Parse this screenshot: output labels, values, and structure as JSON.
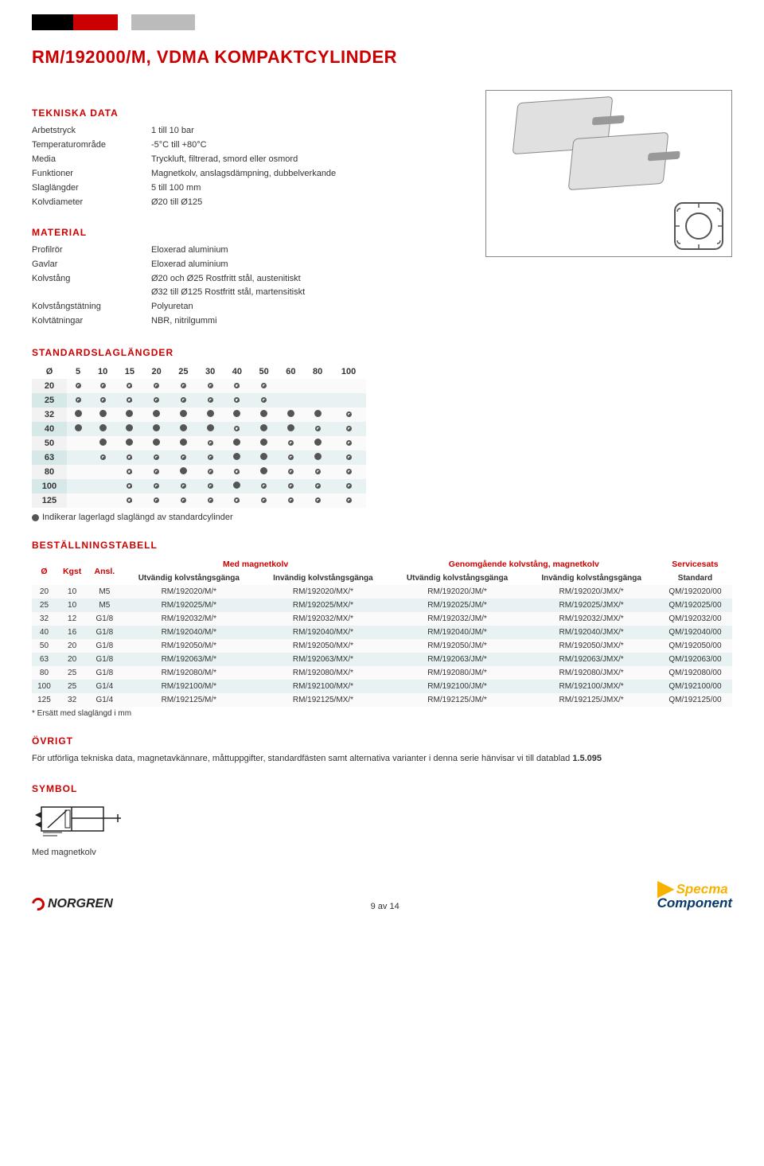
{
  "title": "RM/192000/M, VDMA KOMPAKTCYLINDER",
  "sections": {
    "tech": "TEKNISKA DATA",
    "material": "MATERIAL",
    "strokes": "STANDARDSLAGLÄNGDER",
    "order": "BESTÄLLNINGSTABELL",
    "other": "ÖVRIGT",
    "symbol": "SYMBOL"
  },
  "tech_specs": [
    {
      "label": "Arbetstryck",
      "value": "1 till 10 bar"
    },
    {
      "label": "Temperaturområde",
      "value": "-5°C till +80°C"
    },
    {
      "label": "Media",
      "value": "Tryckluft, filtrerad, smord eller osmord"
    },
    {
      "label": "Funktioner",
      "value": "Magnetkolv, anslagsdämpning, dubbelverkande"
    },
    {
      "label": "Slaglängder",
      "value": "5 till 100 mm"
    },
    {
      "label": "Kolvdiameter",
      "value": "Ø20 till Ø125"
    }
  ],
  "material_specs": [
    {
      "label": "Profilrör",
      "value": "Eloxerad aluminium"
    },
    {
      "label": "Gavlar",
      "value": "Eloxerad aluminium"
    },
    {
      "label": "Kolvstång",
      "value": "Ø20 och Ø25 Rostfritt stål, austenitiskt"
    },
    {
      "label": "",
      "value": "Ø32 till Ø125 Rostfritt stål, martensitiskt"
    },
    {
      "label": "Kolvstångstätning",
      "value": "Polyuretan"
    },
    {
      "label": "Kolvtätningar",
      "value": "NBR, nitrilgummi"
    }
  ],
  "stroke_table": {
    "header": [
      "Ø",
      "5",
      "10",
      "15",
      "20",
      "25",
      "30",
      "40",
      "50",
      "60",
      "80",
      "100"
    ],
    "rows": [
      {
        "d": "20",
        "cells": [
          "r",
          "r",
          "r",
          "r",
          "r",
          "r",
          "r",
          "r",
          "",
          "",
          ""
        ]
      },
      {
        "d": "25",
        "cells": [
          "r",
          "r",
          "r",
          "r",
          "r",
          "r",
          "r",
          "r",
          "",
          "",
          ""
        ]
      },
      {
        "d": "32",
        "cells": [
          "f",
          "f",
          "f",
          "f",
          "f",
          "f",
          "f",
          "f",
          "f",
          "f",
          "r"
        ]
      },
      {
        "d": "40",
        "cells": [
          "f",
          "f",
          "f",
          "f",
          "f",
          "f",
          "r",
          "f",
          "f",
          "r",
          "r"
        ]
      },
      {
        "d": "50",
        "cells": [
          "",
          "f",
          "f",
          "f",
          "f",
          "r",
          "f",
          "f",
          "r",
          "f",
          "r"
        ]
      },
      {
        "d": "63",
        "cells": [
          "",
          "r",
          "r",
          "r",
          "r",
          "r",
          "f",
          "f",
          "r",
          "f",
          "r"
        ]
      },
      {
        "d": "80",
        "cells": [
          "",
          "",
          "r",
          "r",
          "f",
          "r",
          "r",
          "f",
          "r",
          "r",
          "r"
        ]
      },
      {
        "d": "100",
        "cells": [
          "",
          "",
          "r",
          "r",
          "r",
          "r",
          "f",
          "r",
          "r",
          "r",
          "r"
        ]
      },
      {
        "d": "125",
        "cells": [
          "",
          "",
          "r",
          "r",
          "r",
          "r",
          "r",
          "r",
          "r",
          "r",
          "r"
        ]
      }
    ],
    "legend_text": "Indikerar lagerlagd slaglängd av standardcylinder"
  },
  "order_table": {
    "group_headers": {
      "blank": "",
      "kgst": "",
      "ansl": "",
      "magnet": "Med magnetkolv",
      "through": "Genomgående kolvstång, magnetkolv",
      "service": "Servicesats"
    },
    "sub_headers": {
      "dia": "Ø",
      "kgst": "Kgst",
      "ansl": "Ansl.",
      "ext": "Utvändig kolvstångsgänga",
      "int": "Invändig kolvstångsgänga",
      "std": "Standard"
    },
    "rows": [
      {
        "d": "20",
        "k": "10",
        "a": "M5",
        "m1": "RM/192020/M/*",
        "m2": "RM/192020/MX/*",
        "t1": "RM/192020/JM/*",
        "t2": "RM/192020/JMX/*",
        "s": "QM/192020/00"
      },
      {
        "d": "25",
        "k": "10",
        "a": "M5",
        "m1": "RM/192025/M/*",
        "m2": "RM/192025/MX/*",
        "t1": "RM/192025/JM/*",
        "t2": "RM/192025/JMX/*",
        "s": "QM/192025/00"
      },
      {
        "d": "32",
        "k": "12",
        "a": "G1/8",
        "m1": "RM/192032/M/*",
        "m2": "RM/192032/MX/*",
        "t1": "RM/192032/JM/*",
        "t2": "RM/192032/JMX/*",
        "s": "QM/192032/00"
      },
      {
        "d": "40",
        "k": "16",
        "a": "G1/8",
        "m1": "RM/192040/M/*",
        "m2": "RM/192040/MX/*",
        "t1": "RM/192040/JM/*",
        "t2": "RM/192040/JMX/*",
        "s": "QM/192040/00"
      },
      {
        "d": "50",
        "k": "20",
        "a": "G1/8",
        "m1": "RM/192050/M/*",
        "m2": "RM/192050/MX/*",
        "t1": "RM/192050/JM/*",
        "t2": "RM/192050/JMX/*",
        "s": "QM/192050/00"
      },
      {
        "d": "63",
        "k": "20",
        "a": "G1/8",
        "m1": "RM/192063/M/*",
        "m2": "RM/192063/MX/*",
        "t1": "RM/192063/JM/*",
        "t2": "RM/192063/JMX/*",
        "s": "QM/192063/00"
      },
      {
        "d": "80",
        "k": "25",
        "a": "G1/8",
        "m1": "RM/192080/M/*",
        "m2": "RM/192080/MX/*",
        "t1": "RM/192080/JM/*",
        "t2": "RM/192080/JMX/*",
        "s": "QM/192080/00"
      },
      {
        "d": "100",
        "k": "25",
        "a": "G1/4",
        "m1": "RM/192100/M/*",
        "m2": "RM/192100/MX/*",
        "t1": "RM/192100/JM/*",
        "t2": "RM/192100/JMX/*",
        "s": "QM/192100/00"
      },
      {
        "d": "125",
        "k": "32",
        "a": "G1/4",
        "m1": "RM/192125/M/*",
        "m2": "RM/192125/MX/*",
        "t1": "RM/192125/JM/*",
        "t2": "RM/192125/JMX/*",
        "s": "QM/192125/00"
      }
    ],
    "footnote": "* Ersätt med slaglängd i mm"
  },
  "other_text": "För utförliga tekniska data, magnetavkännare, måttuppgifter, standardfästen samt alternativa varianter i denna serie hänvisar vi till datablad ",
  "other_bold": "1.5.095",
  "symbol_caption": "Med magnetkolv",
  "footer": {
    "norgren": "NORGREN",
    "page": "9 av 14",
    "specma1": "Specma",
    "specma2": "Component"
  },
  "colors": {
    "accent": "#cc0000",
    "alt_row": "#e9f2f2",
    "header_tint": "#d7e8e8"
  }
}
